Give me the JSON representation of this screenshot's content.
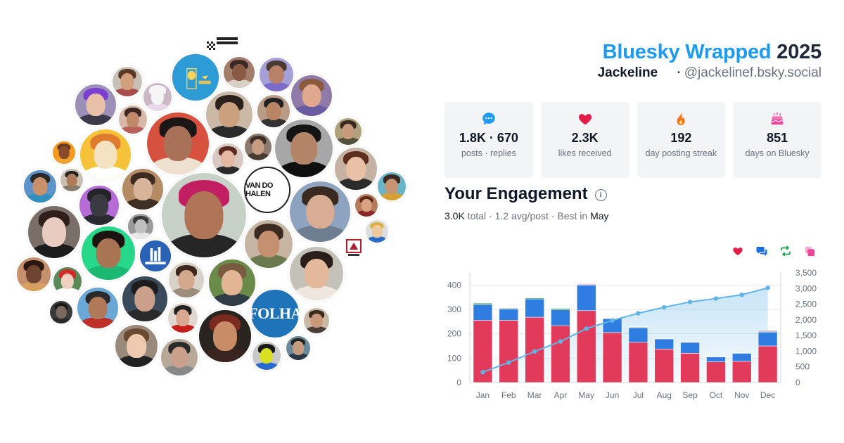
{
  "header": {
    "brand": "Bluesky Wrapped",
    "year": "2025",
    "display_name": "Jackeline",
    "handle": "@jackelinef.bsky.social"
  },
  "stats": [
    {
      "icon": "chat-bubble-icon",
      "color": "#1d9bf0",
      "value": "1.8K · 670",
      "label": "posts · replies"
    },
    {
      "icon": "heart-icon",
      "color": "#e11d48",
      "value": "2.3K",
      "label": "likes received"
    },
    {
      "icon": "flame-icon",
      "color": "#f97316",
      "value": "192",
      "label": "day posting streak"
    },
    {
      "icon": "cake-icon",
      "color": "#ec4899",
      "value": "851",
      "label": "days on Bluesky"
    }
  ],
  "engagement": {
    "title": "Your Engagement",
    "total_value": "3.0K",
    "total_label": "total",
    "avg_value": "1.2",
    "avg_label": "avg/post",
    "best_label": "Best in",
    "best_month": "May",
    "legend_icons": [
      {
        "name": "heart-icon",
        "color": "#e11d48"
      },
      {
        "name": "reply-icon",
        "color": "#1d6fe0"
      },
      {
        "name": "repost-icon",
        "color": "#16a34a"
      },
      {
        "name": "quote-icon",
        "color": "#ec4899"
      }
    ]
  },
  "chart_data": {
    "type": "bar",
    "categories": [
      "Jan",
      "Feb",
      "Mar",
      "Apr",
      "May",
      "Jun",
      "Jul",
      "Aug",
      "Sep",
      "Oct",
      "Nov",
      "Dec"
    ],
    "stacked": true,
    "ylim": [
      0,
      450
    ],
    "yticks": [
      0,
      100,
      200,
      300,
      400
    ],
    "y2lim": [
      0,
      3500
    ],
    "y2ticks": [
      0,
      500,
      1000,
      1500,
      2000,
      2500,
      3000,
      3500
    ],
    "y2tick_labels": [
      "0",
      "500",
      "1,000",
      "1,500",
      "2,000",
      "2,500",
      "3,000",
      "3,500"
    ],
    "grid": true,
    "series": [
      {
        "icon": "heart-icon",
        "color": "#e23a5a",
        "values": [
          255,
          255,
          268,
          233,
          295,
          205,
          165,
          137,
          120,
          85,
          87,
          150
        ]
      },
      {
        "icon": "reply-icon",
        "color": "#2f7de0",
        "values": [
          65,
          47,
          75,
          65,
          105,
          57,
          60,
          42,
          45,
          20,
          33,
          57
        ]
      },
      {
        "icon": "repost-icon",
        "color": "#3fa86a",
        "values": [
          6,
          3,
          4,
          6,
          2,
          1,
          3,
          2,
          2,
          2,
          2,
          3
        ]
      },
      {
        "icon": "quote-icon",
        "color": "#d946a8",
        "values": [
          1,
          1,
          2,
          1,
          3,
          1,
          2,
          1,
          1,
          1,
          1,
          3
        ]
      }
    ],
    "cumulative": {
      "axis": "right",
      "color": "#60b4e8",
      "values": [
        330,
        640,
        990,
        1310,
        1720,
        1980,
        2210,
        2400,
        2570,
        2680,
        2800,
        3020
      ]
    }
  }
}
